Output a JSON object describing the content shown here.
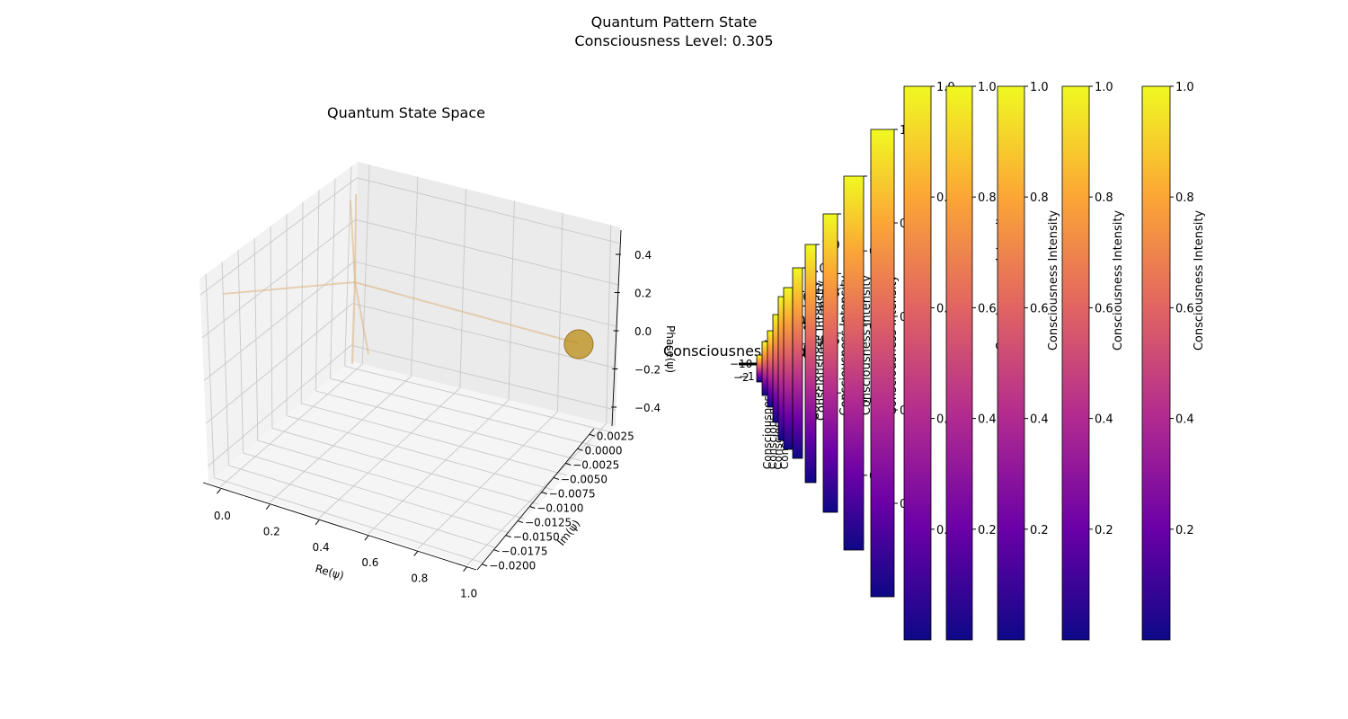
{
  "figure": {
    "suptitle": "Quantum Pattern State",
    "subtitle": "Consciousness Level: 0.305"
  },
  "chart_data": [
    {
      "type": "scatter3d",
      "title": "Quantum State Space",
      "xlabel": "Re(ψ)",
      "ylabel": "Im(ψ)",
      "zlabel": "Phase(ψ)",
      "xlim": [
        -0.05,
        1.05
      ],
      "ylim": [
        -0.021,
        0.0035
      ],
      "zlim": [
        -0.5,
        0.5
      ],
      "xticks": [
        "0.0",
        "0.2",
        "0.4",
        "0.6",
        "0.8",
        "1.0"
      ],
      "yticks": [
        "0.0025",
        "0.0000",
        "−0.0025",
        "−0.0050",
        "−0.0075",
        "−0.0100",
        "−0.0125",
        "−0.0150",
        "−0.0175",
        "−0.0200"
      ],
      "zticks": [
        "0.4",
        "0.2",
        "0.0",
        "−0.2",
        "−0.4"
      ],
      "grid": true,
      "marker_color": "#b8860b",
      "current_state": {
        "x": 1.0,
        "y": 0.0,
        "z": 0.0
      },
      "trajectory_color": "#deb887"
    },
    {
      "type": "heatmap",
      "title": "Consciousness Field",
      "colormap": "plasma",
      "colormap_stops": [
        "#0d0887",
        "#6a00a8",
        "#b12a90",
        "#e16462",
        "#fca636",
        "#f0f921"
      ],
      "colorbar_label": "Consciousness Intensity",
      "colorbar_range": [
        0.0,
        1.0
      ],
      "colorbar_ticks_full": [
        "1.0",
        "0.8",
        "0.6",
        "0.4",
        "0.2"
      ],
      "tick_fragments": [
        "−10",
        "−2",
        "−1"
      ]
    }
  ]
}
